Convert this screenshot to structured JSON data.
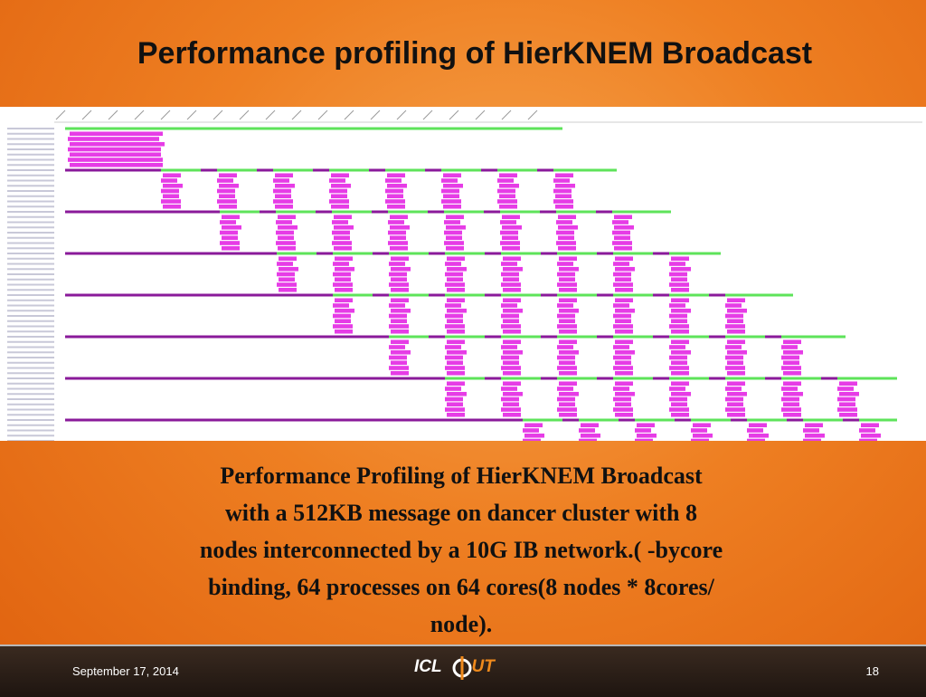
{
  "title": "Performance profiling of HierKNEM Broadcast",
  "caption": [
    "Performance Profiling of HierKNEM Broadcast",
    "with a 512KB message on dancer cluster with 8",
    "nodes interconnected by a 10G IB network.( -bycore",
    "binding, 64 processes on 64 cores(8 nodes * 8cores/",
    "node)."
  ],
  "footer": {
    "date": "September 17, 2014",
    "logo": {
      "left": "ICL",
      "right": "UT"
    },
    "page": "18"
  }
}
